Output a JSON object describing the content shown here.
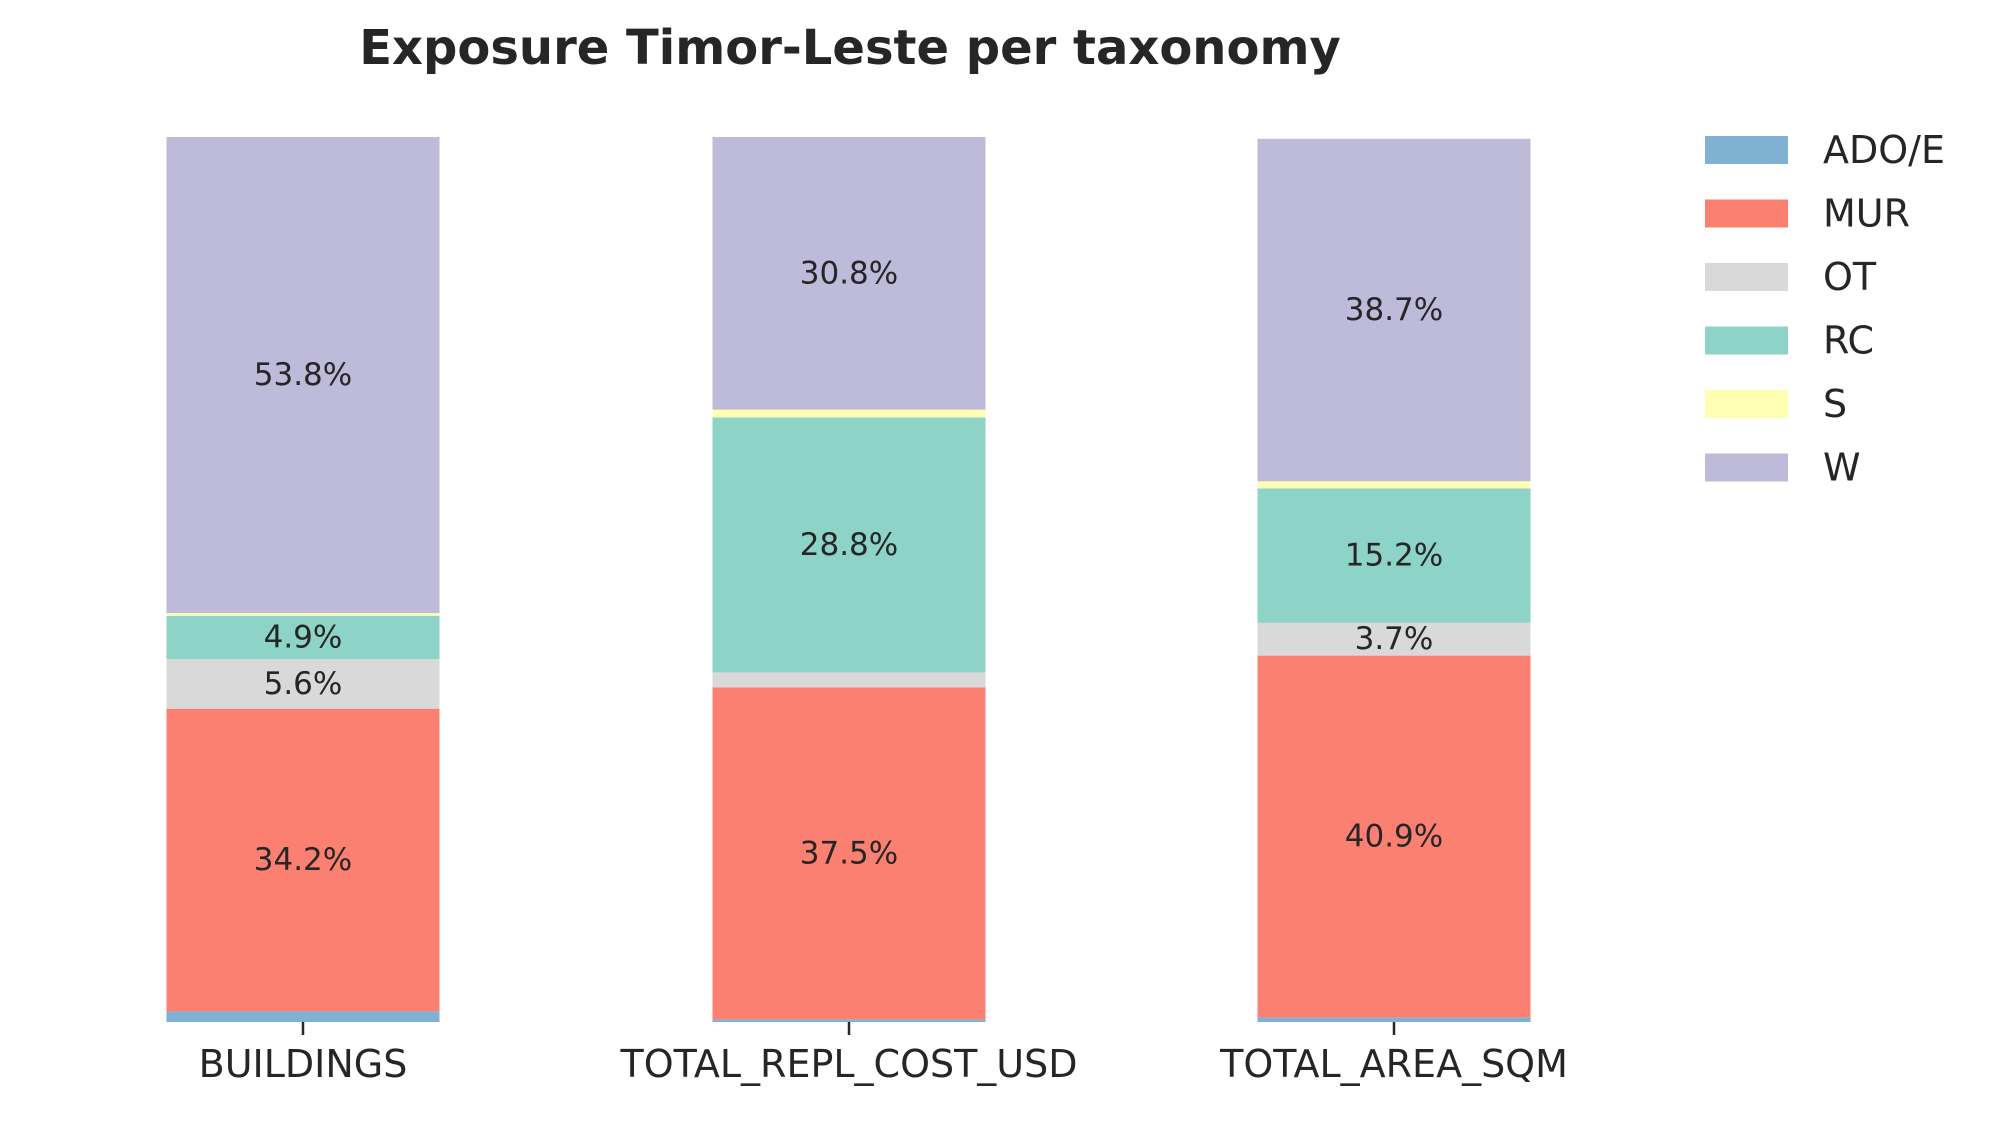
{
  "chart_data": {
    "type": "bar",
    "stacked": true,
    "normalized": true,
    "title": "Exposure Timor-Leste per taxonomy",
    "xlabel": "",
    "ylabel": "",
    "ylim": [
      0,
      100
    ],
    "grid": false,
    "legend_position": "top-right",
    "categories": [
      "BUILDINGS",
      "TOTAL_REPL_COST_USD",
      "TOTAL_AREA_SQM"
    ],
    "series": [
      {
        "name": "ADO/E",
        "color": "#80b1d3",
        "values": [
          1.2,
          0.3,
          0.5
        ],
        "labels": [
          "",
          "",
          ""
        ]
      },
      {
        "name": "MUR",
        "color": "#fb8072",
        "values": [
          34.2,
          37.5,
          40.9
        ],
        "labels": [
          "34.2%",
          "37.5%",
          "40.9%"
        ]
      },
      {
        "name": "OT",
        "color": "#d9d9d9",
        "values": [
          5.6,
          1.7,
          3.7
        ],
        "labels": [
          "5.6%",
          "",
          "3.7%"
        ]
      },
      {
        "name": "RC",
        "color": "#8dd3c7",
        "values": [
          4.9,
          28.8,
          15.2
        ],
        "labels": [
          "4.9%",
          "28.8%",
          "15.2%"
        ]
      },
      {
        "name": "S",
        "color": "#ffffb3",
        "values": [
          0.3,
          0.9,
          0.8
        ],
        "labels": [
          "",
          "",
          ""
        ]
      },
      {
        "name": "W",
        "color": "#bebada",
        "values": [
          53.8,
          30.8,
          38.7
        ],
        "labels": [
          "53.8%",
          "30.8%",
          "38.7%"
        ]
      }
    ]
  }
}
